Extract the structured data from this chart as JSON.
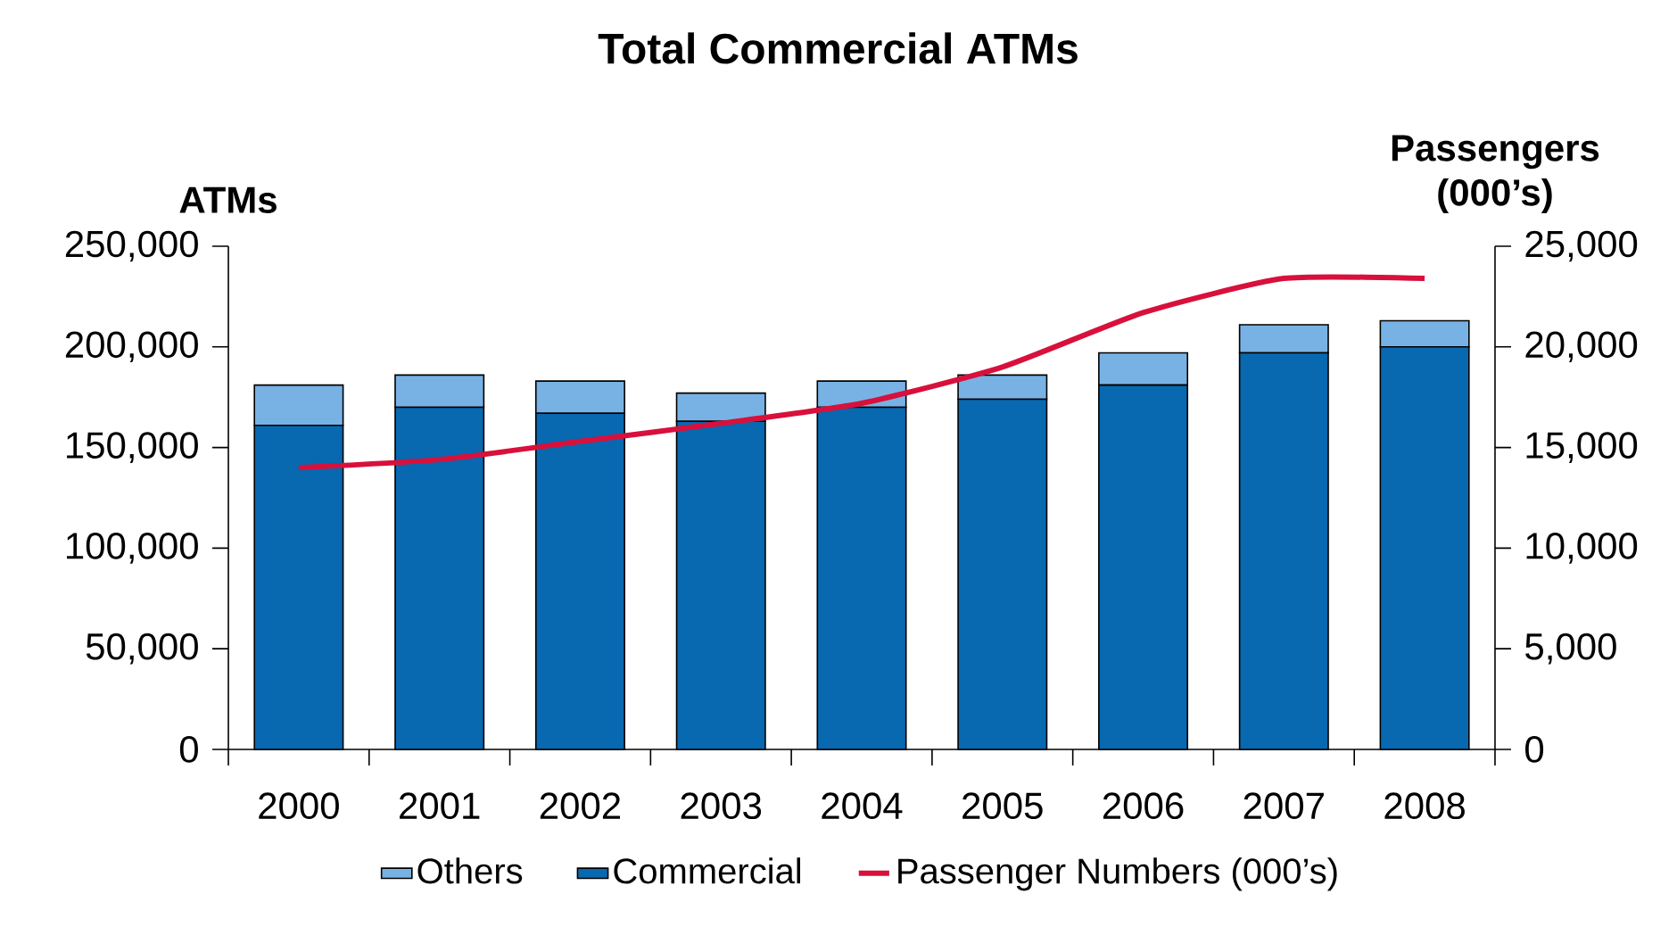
{
  "chart_data": {
    "type": "bar",
    "title": "Total Commercial ATMs",
    "ylabel": "ATMs",
    "y2label": "Passengers (000’s)",
    "categories": [
      "2000",
      "2001",
      "2002",
      "2003",
      "2004",
      "2005",
      "2006",
      "2007",
      "2008"
    ],
    "stacked": true,
    "series": [
      {
        "name": "Commercial",
        "color": "#0868b0",
        "values": [
          161000,
          170000,
          167000,
          163000,
          170000,
          174000,
          181000,
          197000,
          200000
        ]
      },
      {
        "name": "Others",
        "color": "#78b2e4",
        "values": [
          20000,
          16000,
          16000,
          14000,
          13000,
          12000,
          16000,
          14000,
          13000
        ]
      },
      {
        "name": "Passenger Numbers (000’s)",
        "type": "line",
        "axis": "y2",
        "color": "#d8103c",
        "values": [
          14000,
          14400,
          15300,
          16200,
          17200,
          19000,
          21700,
          23400,
          23400
        ]
      }
    ],
    "ylim": [
      0,
      250000
    ],
    "yticks": [
      0,
      {
        "value": 50000,
        "label": "50,000"
      },
      {
        "value": 100000,
        "label": "100,000"
      },
      {
        "value": 150000,
        "label": "150,000"
      },
      {
        "value": 200000,
        "label": "200,000"
      },
      {
        "value": 250000,
        "label": "250,000"
      }
    ],
    "y2lim": [
      0,
      25000
    ],
    "y2ticks": [
      0,
      {
        "value": 5000,
        "label": "5,000"
      },
      {
        "value": 10000,
        "label": "10,000"
      },
      {
        "value": 15000,
        "label": "15,000"
      },
      {
        "value": 20000,
        "label": "20,000"
      },
      {
        "value": 25000,
        "label": "25,000"
      }
    ],
    "legend": "bottom",
    "grid": false,
    "marker": "none",
    "line_style": "solid"
  }
}
